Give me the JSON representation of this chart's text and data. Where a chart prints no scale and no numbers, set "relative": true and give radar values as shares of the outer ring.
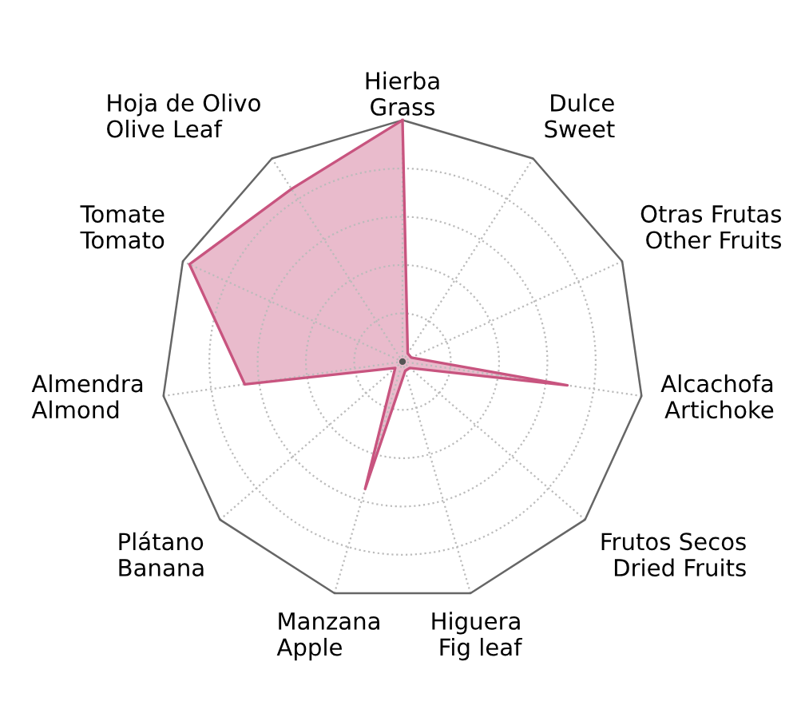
{
  "chart_data": {
    "type": "radar",
    "relative": true,
    "grid": true,
    "categories": [
      "Hierba\nGrass",
      "Dulce\nSweet",
      "Otras Frutas\nOther Fruits",
      "Alcachofa\nArtichoke",
      "Frutos Secos\nDried Fruits",
      "Higuera\nFig leaf",
      "Manzana\nApple",
      "Plátano\nBanana",
      "Almendra\nAlmond",
      "Tomate\nTomato",
      "Hoja de Olivo\nOlive Leaf"
    ],
    "series": [
      {
        "color": "#c8547f",
        "values": [
          1.0,
          0.04,
          0.04,
          0.69,
          0.04,
          0.04,
          0.55,
          0.04,
          0.66,
          0.97,
          0.85
        ]
      }
    ]
  }
}
